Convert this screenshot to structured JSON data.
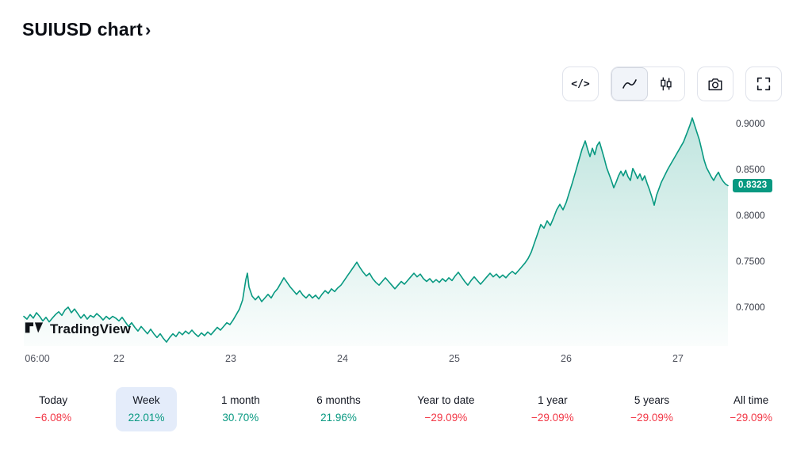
{
  "header": {
    "title": "SUIUSD chart",
    "chevron": "›"
  },
  "toolbar": {
    "buttons": [
      {
        "name": "source-code",
        "icon": "code-icon"
      },
      {
        "name": "area-chart",
        "icon": "area-chart-icon",
        "selected": true
      },
      {
        "name": "candles-chart",
        "icon": "candlestick-icon"
      },
      {
        "name": "snapshot",
        "icon": "camera-icon"
      },
      {
        "name": "fullscreen",
        "icon": "fullscreen-icon"
      }
    ]
  },
  "watermark": {
    "text": "TradingView"
  },
  "chart_data": {
    "type": "area",
    "title": "SUIUSD chart",
    "symbol": "SUIUSD",
    "line_color": "#089981",
    "fill_top_color": "rgba(8,153,129,0.26)",
    "fill_bottom_color": "rgba(8,153,129,0.02)",
    "current_price": "0.8323",
    "current_price_value": 0.8323,
    "y_ticks": [
      "0.9000",
      "0.8500",
      "0.8000",
      "0.7500",
      "0.7000"
    ],
    "y_tick_values": [
      0.9,
      0.85,
      0.8,
      0.75,
      0.7
    ],
    "x_ticks": [
      "06:00",
      "22",
      "23",
      "24",
      "25",
      "26",
      "27"
    ],
    "ylim": [
      0.655,
      0.915
    ],
    "grid": false,
    "legend_position": "none",
    "points": [
      [
        30,
        0.69
      ],
      [
        34,
        0.687
      ],
      [
        38,
        0.692
      ],
      [
        42,
        0.688
      ],
      [
        46,
        0.694
      ],
      [
        50,
        0.69
      ],
      [
        54,
        0.685
      ],
      [
        58,
        0.689
      ],
      [
        62,
        0.684
      ],
      [
        66,
        0.688
      ],
      [
        70,
        0.692
      ],
      [
        74,
        0.695
      ],
      [
        78,
        0.691
      ],
      [
        82,
        0.697
      ],
      [
        86,
        0.7
      ],
      [
        90,
        0.694
      ],
      [
        94,
        0.698
      ],
      [
        98,
        0.693
      ],
      [
        102,
        0.688
      ],
      [
        106,
        0.692
      ],
      [
        110,
        0.687
      ],
      [
        114,
        0.691
      ],
      [
        118,
        0.689
      ],
      [
        122,
        0.693
      ],
      [
        126,
        0.69
      ],
      [
        130,
        0.686
      ],
      [
        134,
        0.69
      ],
      [
        138,
        0.687
      ],
      [
        142,
        0.69
      ],
      [
        146,
        0.688
      ],
      [
        150,
        0.685
      ],
      [
        154,
        0.689
      ],
      [
        158,
        0.684
      ],
      [
        162,
        0.679
      ],
      [
        166,
        0.683
      ],
      [
        170,
        0.678
      ],
      [
        174,
        0.674
      ],
      [
        178,
        0.679
      ],
      [
        182,
        0.675
      ],
      [
        186,
        0.671
      ],
      [
        190,
        0.676
      ],
      [
        194,
        0.671
      ],
      [
        198,
        0.667
      ],
      [
        202,
        0.671
      ],
      [
        206,
        0.666
      ],
      [
        210,
        0.662
      ],
      [
        214,
        0.667
      ],
      [
        218,
        0.671
      ],
      [
        222,
        0.668
      ],
      [
        226,
        0.673
      ],
      [
        230,
        0.67
      ],
      [
        234,
        0.674
      ],
      [
        238,
        0.671
      ],
      [
        242,
        0.675
      ],
      [
        246,
        0.671
      ],
      [
        250,
        0.668
      ],
      [
        254,
        0.672
      ],
      [
        258,
        0.669
      ],
      [
        262,
        0.673
      ],
      [
        266,
        0.67
      ],
      [
        270,
        0.674
      ],
      [
        274,
        0.678
      ],
      [
        278,
        0.675
      ],
      [
        282,
        0.679
      ],
      [
        286,
        0.683
      ],
      [
        290,
        0.681
      ],
      [
        294,
        0.686
      ],
      [
        298,
        0.692
      ],
      [
        302,
        0.698
      ],
      [
        306,
        0.708
      ],
      [
        310,
        0.73
      ],
      [
        312,
        0.737
      ],
      [
        314,
        0.722
      ],
      [
        318,
        0.712
      ],
      [
        322,
        0.708
      ],
      [
        326,
        0.712
      ],
      [
        330,
        0.706
      ],
      [
        334,
        0.71
      ],
      [
        338,
        0.714
      ],
      [
        342,
        0.71
      ],
      [
        346,
        0.716
      ],
      [
        350,
        0.72
      ],
      [
        354,
        0.726
      ],
      [
        358,
        0.732
      ],
      [
        362,
        0.727
      ],
      [
        366,
        0.722
      ],
      [
        370,
        0.718
      ],
      [
        374,
        0.714
      ],
      [
        378,
        0.718
      ],
      [
        382,
        0.713
      ],
      [
        386,
        0.71
      ],
      [
        390,
        0.714
      ],
      [
        394,
        0.71
      ],
      [
        398,
        0.713
      ],
      [
        402,
        0.709
      ],
      [
        406,
        0.714
      ],
      [
        410,
        0.718
      ],
      [
        414,
        0.715
      ],
      [
        418,
        0.72
      ],
      [
        422,
        0.717
      ],
      [
        426,
        0.721
      ],
      [
        430,
        0.724
      ],
      [
        434,
        0.729
      ],
      [
        438,
        0.734
      ],
      [
        442,
        0.739
      ],
      [
        446,
        0.744
      ],
      [
        450,
        0.749
      ],
      [
        454,
        0.743
      ],
      [
        458,
        0.738
      ],
      [
        462,
        0.734
      ],
      [
        466,
        0.737
      ],
      [
        470,
        0.731
      ],
      [
        474,
        0.727
      ],
      [
        478,
        0.724
      ],
      [
        482,
        0.728
      ],
      [
        486,
        0.732
      ],
      [
        490,
        0.728
      ],
      [
        494,
        0.724
      ],
      [
        498,
        0.72
      ],
      [
        502,
        0.724
      ],
      [
        506,
        0.728
      ],
      [
        510,
        0.725
      ],
      [
        514,
        0.729
      ],
      [
        518,
        0.733
      ],
      [
        522,
        0.737
      ],
      [
        526,
        0.733
      ],
      [
        530,
        0.736
      ],
      [
        534,
        0.731
      ],
      [
        538,
        0.728
      ],
      [
        542,
        0.731
      ],
      [
        546,
        0.727
      ],
      [
        550,
        0.73
      ],
      [
        554,
        0.727
      ],
      [
        558,
        0.731
      ],
      [
        562,
        0.728
      ],
      [
        566,
        0.732
      ],
      [
        570,
        0.729
      ],
      [
        574,
        0.734
      ],
      [
        578,
        0.738
      ],
      [
        582,
        0.733
      ],
      [
        586,
        0.728
      ],
      [
        590,
        0.724
      ],
      [
        594,
        0.729
      ],
      [
        598,
        0.733
      ],
      [
        602,
        0.729
      ],
      [
        606,
        0.725
      ],
      [
        610,
        0.729
      ],
      [
        614,
        0.733
      ],
      [
        618,
        0.737
      ],
      [
        622,
        0.733
      ],
      [
        626,
        0.736
      ],
      [
        630,
        0.732
      ],
      [
        634,
        0.735
      ],
      [
        638,
        0.732
      ],
      [
        642,
        0.736
      ],
      [
        646,
        0.739
      ],
      [
        650,
        0.736
      ],
      [
        654,
        0.74
      ],
      [
        658,
        0.744
      ],
      [
        662,
        0.748
      ],
      [
        666,
        0.753
      ],
      [
        670,
        0.76
      ],
      [
        674,
        0.77
      ],
      [
        678,
        0.78
      ],
      [
        682,
        0.79
      ],
      [
        686,
        0.786
      ],
      [
        690,
        0.794
      ],
      [
        694,
        0.789
      ],
      [
        698,
        0.797
      ],
      [
        702,
        0.806
      ],
      [
        706,
        0.812
      ],
      [
        710,
        0.806
      ],
      [
        714,
        0.814
      ],
      [
        718,
        0.825
      ],
      [
        722,
        0.836
      ],
      [
        726,
        0.848
      ],
      [
        730,
        0.86
      ],
      [
        734,
        0.872
      ],
      [
        738,
        0.881
      ],
      [
        741,
        0.872
      ],
      [
        744,
        0.864
      ],
      [
        747,
        0.873
      ],
      [
        750,
        0.866
      ],
      [
        753,
        0.876
      ],
      [
        756,
        0.88
      ],
      [
        759,
        0.871
      ],
      [
        762,
        0.862
      ],
      [
        765,
        0.852
      ],
      [
        768,
        0.845
      ],
      [
        771,
        0.838
      ],
      [
        774,
        0.83
      ],
      [
        777,
        0.836
      ],
      [
        780,
        0.843
      ],
      [
        783,
        0.848
      ],
      [
        786,
        0.843
      ],
      [
        789,
        0.849
      ],
      [
        792,
        0.842
      ],
      [
        795,
        0.838
      ],
      [
        798,
        0.851
      ],
      [
        801,
        0.846
      ],
      [
        804,
        0.84
      ],
      [
        807,
        0.845
      ],
      [
        810,
        0.838
      ],
      [
        813,
        0.843
      ],
      [
        816,
        0.835
      ],
      [
        819,
        0.828
      ],
      [
        822,
        0.82
      ],
      [
        825,
        0.811
      ],
      [
        828,
        0.822
      ],
      [
        831,
        0.829
      ],
      [
        834,
        0.836
      ],
      [
        838,
        0.843
      ],
      [
        842,
        0.85
      ],
      [
        846,
        0.856
      ],
      [
        850,
        0.862
      ],
      [
        854,
        0.868
      ],
      [
        858,
        0.874
      ],
      [
        862,
        0.88
      ],
      [
        866,
        0.889
      ],
      [
        870,
        0.898
      ],
      [
        873,
        0.906
      ],
      [
        876,
        0.898
      ],
      [
        879,
        0.89
      ],
      [
        882,
        0.882
      ],
      [
        885,
        0.871
      ],
      [
        888,
        0.86
      ],
      [
        891,
        0.852
      ],
      [
        894,
        0.847
      ],
      [
        897,
        0.842
      ],
      [
        900,
        0.838
      ],
      [
        903,
        0.843
      ],
      [
        906,
        0.847
      ],
      [
        909,
        0.841
      ],
      [
        912,
        0.837
      ],
      [
        915,
        0.834
      ],
      [
        918,
        0.8323
      ]
    ]
  },
  "ranges": [
    {
      "label": "Today",
      "change": "−6.08%",
      "direction": "down",
      "selected": false
    },
    {
      "label": "Week",
      "change": "22.01%",
      "direction": "up",
      "selected": true
    },
    {
      "label": "1 month",
      "change": "30.70%",
      "direction": "up",
      "selected": false
    },
    {
      "label": "6 months",
      "change": "21.96%",
      "direction": "up",
      "selected": false
    },
    {
      "label": "Year to date",
      "change": "−29.09%",
      "direction": "down",
      "selected": false
    },
    {
      "label": "1 year",
      "change": "−29.09%",
      "direction": "down",
      "selected": false
    },
    {
      "label": "5 years",
      "change": "−29.09%",
      "direction": "down",
      "selected": false
    },
    {
      "label": "All time",
      "change": "−29.09%",
      "direction": "down",
      "selected": false
    }
  ]
}
